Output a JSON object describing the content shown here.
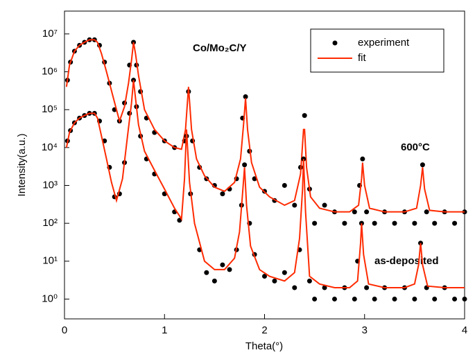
{
  "chart_data": {
    "type": "line",
    "annotations": [
      "Co/Mo₂C/Y",
      "600°C",
      "as-deposited"
    ],
    "xlabel": "Theta(°)",
    "ylabel": "Intensity(a.u.)",
    "xlim": [
      0,
      4
    ],
    "xticks": [
      0,
      1,
      2,
      3,
      4
    ],
    "ylim": [
      0.3,
      40000000
    ],
    "ylog": true,
    "yticks": [
      {
        "value": 1,
        "label": "10⁰"
      },
      {
        "value": 10,
        "label": "10¹"
      },
      {
        "value": 100,
        "label": "10²"
      },
      {
        "value": 1000,
        "label": "10³"
      },
      {
        "value": 10000,
        "label": "10⁴"
      },
      {
        "value": 100000,
        "label": "10⁵"
      },
      {
        "value": 1000000,
        "label": "10⁶"
      },
      {
        "value": 10000000,
        "label": "10⁷"
      }
    ],
    "legend": "upper right",
    "series": [
      {
        "name": "experiment",
        "color": "#000000",
        "style": "markers",
        "x": [
          0.03,
          0.06,
          0.1,
          0.15,
          0.2,
          0.25,
          0.3,
          0.35,
          0.4,
          0.45,
          0.5,
          0.55,
          0.6,
          0.65,
          0.69,
          0.72,
          0.76,
          0.82,
          0.9,
          1.0,
          1.1,
          1.2,
          1.24,
          1.28,
          1.35,
          1.42,
          1.5,
          1.58,
          1.65,
          1.72,
          1.78,
          1.81,
          1.85,
          1.9,
          2.0,
          2.1,
          2.2,
          2.3,
          2.36,
          2.4,
          2.45,
          2.5,
          2.6,
          2.7,
          2.8,
          2.9,
          2.95,
          2.98,
          3.02,
          3.1,
          3.2,
          3.3,
          3.4,
          3.5,
          3.58,
          3.62,
          3.7,
          3.8,
          3.9,
          4.0
        ],
        "values": [
          600000,
          1800000,
          3500000,
          5000000,
          6000000,
          7000000,
          7000000,
          5000000,
          1800000,
          500000,
          100000,
          50000,
          150000,
          1500000,
          6000000,
          1500000,
          300000,
          60000,
          25000,
          15000,
          10000,
          15000,
          300000,
          15000,
          3000,
          1500,
          1000,
          600,
          800,
          1500,
          60000,
          220000,
          8000,
          1500,
          700,
          400,
          1000,
          300,
          3000,
          70000,
          800,
          100,
          300,
          200,
          100,
          200,
          1000,
          5000,
          200,
          100,
          200,
          100,
          200,
          100,
          3500,
          200,
          100,
          200,
          100,
          200
        ]
      },
      {
        "name": "fit",
        "color": "#ff2a00",
        "style": "line",
        "x": [
          0.02,
          0.05,
          0.1,
          0.15,
          0.2,
          0.25,
          0.3,
          0.33,
          0.37,
          0.42,
          0.48,
          0.55,
          0.6,
          0.64,
          0.67,
          0.69,
          0.71,
          0.74,
          0.8,
          0.9,
          1.0,
          1.1,
          1.17,
          1.21,
          1.24,
          1.27,
          1.32,
          1.4,
          1.5,
          1.6,
          1.7,
          1.76,
          1.79,
          1.81,
          1.83,
          1.87,
          1.95,
          2.05,
          2.2,
          2.3,
          2.36,
          2.39,
          2.4,
          2.42,
          2.46,
          2.55,
          2.7,
          2.85,
          2.94,
          2.97,
          2.98,
          3.0,
          3.05,
          3.2,
          3.4,
          3.52,
          3.56,
          3.58,
          3.6,
          3.65,
          3.8,
          4.0
        ],
        "values": [
          400000,
          1500000,
          3500000,
          5000000,
          6000000,
          7000000,
          7000000,
          6000000,
          3000000,
          1000000,
          250000,
          50000,
          120000,
          500000,
          2000000,
          6000000,
          3000000,
          800000,
          100000,
          30000,
          15000,
          10000,
          9000,
          30000,
          400000,
          30000,
          5000,
          1800,
          900,
          700,
          1200,
          5000,
          40000,
          200000,
          30000,
          4000,
          900,
          500,
          300,
          400,
          2000,
          30000,
          30000,
          3000,
          500,
          250,
          200,
          200,
          300,
          1500,
          4000,
          1000,
          250,
          200,
          200,
          250,
          1000,
          3000,
          800,
          220,
          200,
          200
        ]
      },
      {
        "color": "#000000",
        "style": "markers",
        "x": [
          0.03,
          0.06,
          0.1,
          0.15,
          0.2,
          0.25,
          0.3,
          0.35,
          0.4,
          0.45,
          0.5,
          0.55,
          0.6,
          0.65,
          0.69,
          0.72,
          0.76,
          0.82,
          0.9,
          1.0,
          1.1,
          1.15,
          1.22,
          1.26,
          1.35,
          1.42,
          1.5,
          1.58,
          1.65,
          1.72,
          1.77,
          1.8,
          1.85,
          1.9,
          2.0,
          2.1,
          2.2,
          2.3,
          2.35,
          2.39,
          2.45,
          2.5,
          2.6,
          2.7,
          2.8,
          2.9,
          2.93,
          2.97,
          3.02,
          3.1,
          3.2,
          3.3,
          3.4,
          3.5,
          3.56,
          3.62,
          3.7,
          3.8,
          3.9,
          4.0
        ],
        "values": [
          15000,
          28000,
          45000,
          60000,
          70000,
          80000,
          80000,
          50000,
          15000,
          3000,
          500,
          600,
          4000,
          80000,
          600000,
          120000,
          20000,
          5000,
          2000,
          600,
          200,
          120,
          20000,
          600,
          20,
          5,
          3,
          8,
          6,
          20,
          300,
          3500,
          100,
          15,
          4,
          3,
          5,
          2,
          20,
          5000,
          3,
          1,
          2,
          1,
          2,
          1,
          10,
          100,
          2,
          1,
          2,
          1,
          2,
          1,
          30,
          2,
          1,
          2,
          1,
          1
        ]
      },
      {
        "color": "#ff2a00",
        "style": "line",
        "x": [
          0.02,
          0.05,
          0.1,
          0.15,
          0.2,
          0.25,
          0.3,
          0.33,
          0.37,
          0.42,
          0.47,
          0.52,
          0.58,
          0.63,
          0.67,
          0.69,
          0.71,
          0.74,
          0.8,
          0.9,
          1.0,
          1.1,
          1.17,
          1.2,
          1.22,
          1.25,
          1.3,
          1.4,
          1.5,
          1.6,
          1.7,
          1.75,
          1.78,
          1.8,
          1.82,
          1.86,
          1.95,
          2.05,
          2.2,
          2.3,
          2.35,
          2.38,
          2.39,
          2.41,
          2.45,
          2.55,
          2.7,
          2.85,
          2.93,
          2.96,
          2.97,
          2.99,
          3.04,
          3.2,
          3.4,
          3.5,
          3.54,
          3.56,
          3.58,
          3.63,
          3.8,
          4.0
        ],
        "values": [
          10000,
          25000,
          45000,
          60000,
          70000,
          80000,
          80000,
          60000,
          20000,
          5000,
          1200,
          400,
          1500,
          20000,
          150000,
          600000,
          200000,
          40000,
          8000,
          2500,
          800,
          250,
          130,
          1500,
          30000,
          1200,
          100,
          10,
          6,
          6,
          12,
          60,
          600,
          3000,
          300,
          25,
          6,
          4,
          3,
          5,
          40,
          800,
          5000,
          200,
          4,
          2.5,
          2,
          2,
          3,
          30,
          100,
          15,
          2.5,
          2,
          2,
          2.5,
          8,
          30,
          8,
          2.2,
          2,
          2
        ]
      }
    ]
  }
}
